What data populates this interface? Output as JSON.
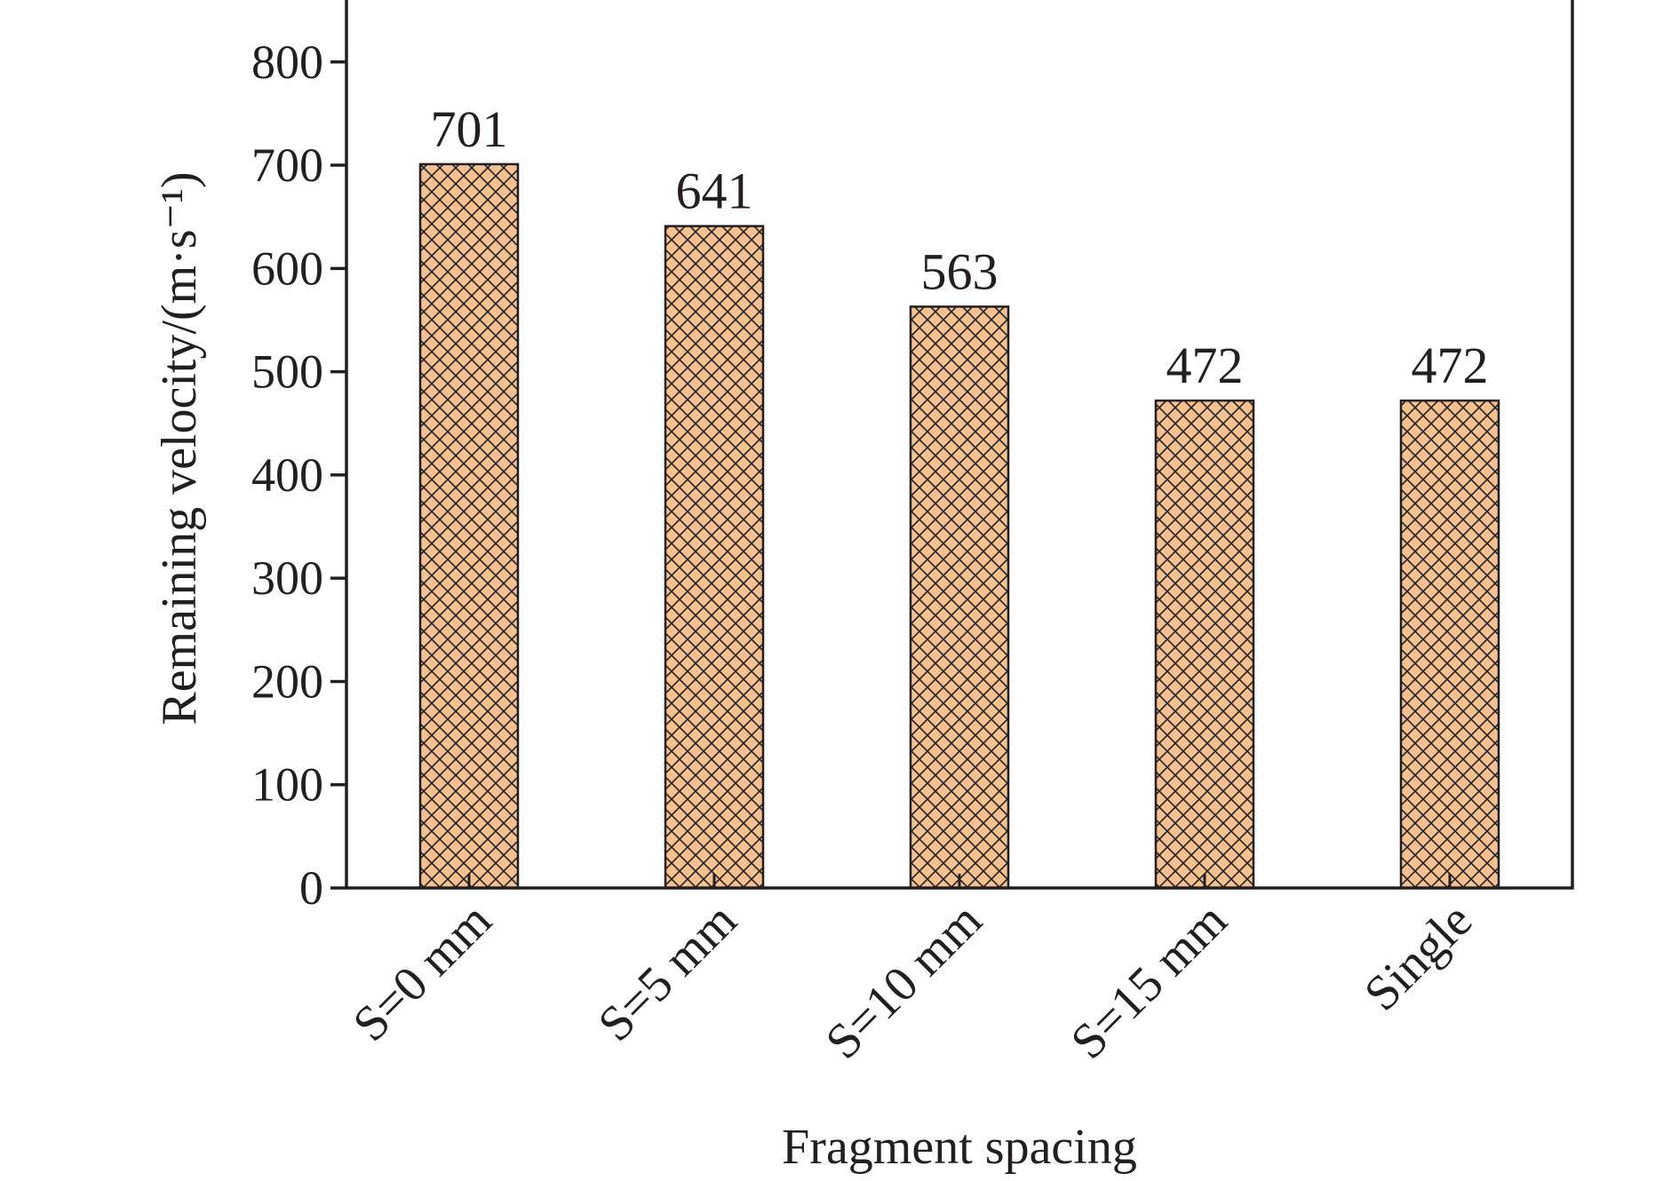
{
  "chart_data": {
    "type": "bar",
    "categories": [
      "S=0 mm",
      "S=5 mm",
      "S=10 mm",
      "S=15 mm",
      "Single"
    ],
    "values": [
      701,
      641,
      563,
      472,
      472
    ],
    "data_labels": [
      "701",
      "641",
      "563",
      "472",
      "472"
    ],
    "title": "",
    "xlabel": "Fragment spacing",
    "ylabel": "Remaining velocity/(m·s⁻¹)",
    "ylim": [
      0,
      860
    ],
    "yticks": [
      0,
      100,
      200,
      300,
      400,
      500,
      600,
      700,
      800
    ],
    "ytick_labels": [
      "0",
      "100",
      "200",
      "300",
      "400",
      "500",
      "600",
      "700",
      "800"
    ],
    "grid": false,
    "legend": "none",
    "bar_fill": "#F5C08F",
    "hatch": "crosshatch",
    "edge_color": "#231F20"
  }
}
